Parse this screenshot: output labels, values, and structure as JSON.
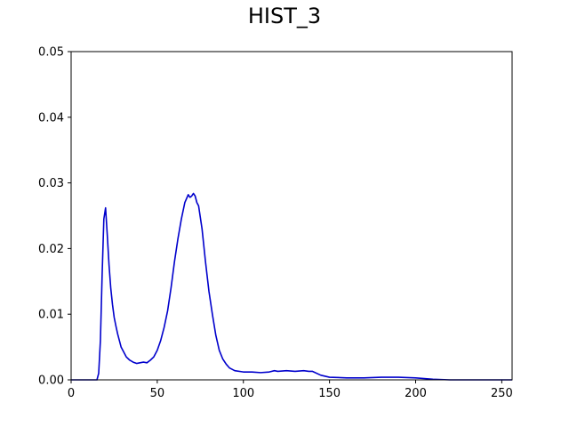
{
  "chart_data": {
    "type": "line",
    "title": "HIST_3",
    "xlabel": "",
    "ylabel": "",
    "xlim": [
      0,
      256
    ],
    "ylim": [
      0,
      0.05
    ],
    "xticks": [
      0,
      50,
      100,
      150,
      200,
      250
    ],
    "xtick_labels": [
      "0",
      "50",
      "100",
      "150",
      "200",
      "250"
    ],
    "yticks": [
      0.0,
      0.01,
      0.02,
      0.03,
      0.04,
      0.05
    ],
    "ytick_labels": [
      "0.00",
      "0.01",
      "0.02",
      "0.03",
      "0.04",
      "0.05"
    ],
    "grid": false,
    "line_color": "#0000cc",
    "series": [
      {
        "x": [
          0,
          10,
          15,
          16,
          17,
          18,
          19,
          20,
          21,
          22,
          23,
          24,
          25,
          26,
          27,
          28,
          29,
          30,
          32,
          34,
          36,
          38,
          40,
          42,
          44,
          46,
          48,
          50,
          52,
          54,
          56,
          58,
          60,
          62,
          64,
          66,
          68,
          69,
          70,
          71,
          72,
          73,
          74,
          76,
          78,
          80,
          82,
          84,
          86,
          88,
          90,
          92,
          95,
          100,
          105,
          110,
          115,
          118,
          120,
          125,
          130,
          135,
          138,
          140,
          145,
          150,
          160,
          170,
          180,
          190,
          200,
          210,
          220,
          230,
          240,
          250,
          256
        ],
        "y": [
          0.0,
          0.0,
          0.0,
          0.001,
          0.006,
          0.016,
          0.0245,
          0.0262,
          0.022,
          0.0175,
          0.014,
          0.0115,
          0.0095,
          0.0082,
          0.007,
          0.006,
          0.005,
          0.0045,
          0.0035,
          0.003,
          0.0027,
          0.0025,
          0.0026,
          0.0027,
          0.0026,
          0.003,
          0.0035,
          0.0045,
          0.006,
          0.008,
          0.0105,
          0.014,
          0.018,
          0.0215,
          0.0245,
          0.027,
          0.0282,
          0.0278,
          0.028,
          0.0284,
          0.028,
          0.027,
          0.0265,
          0.023,
          0.018,
          0.0135,
          0.01,
          0.0068,
          0.0045,
          0.0032,
          0.0024,
          0.0018,
          0.0014,
          0.0012,
          0.0012,
          0.0011,
          0.0012,
          0.0014,
          0.0013,
          0.0014,
          0.0013,
          0.0014,
          0.0013,
          0.0013,
          0.0007,
          0.0004,
          0.0003,
          0.0003,
          0.0004,
          0.0004,
          0.0003,
          0.0001,
          0.0,
          0.0,
          0.0,
          0.0,
          0.0
        ]
      }
    ]
  }
}
